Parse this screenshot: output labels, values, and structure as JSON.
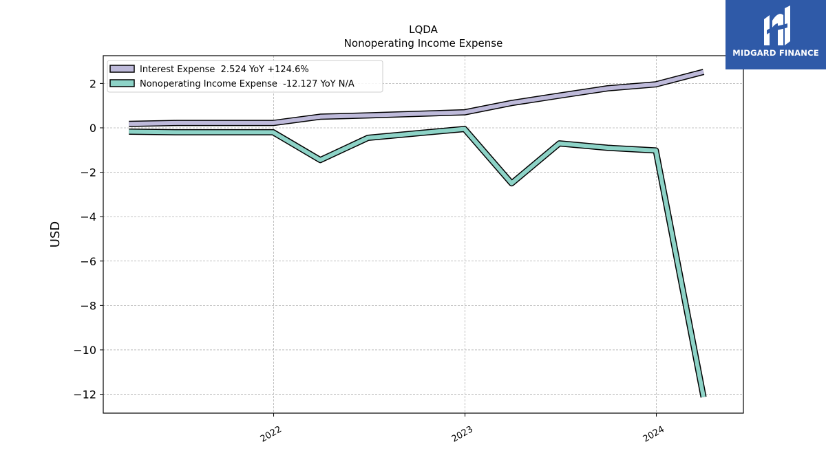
{
  "brand": {
    "name": "MIDGARD FINANCE",
    "background": "#2f5aa8"
  },
  "chart_data": {
    "type": "line",
    "title": "LQDA",
    "subtitle": "Nonoperating Income Expense",
    "ylabel": "USD",
    "xlabel": "",
    "xlim": [
      "2021-02-10",
      "2024-06-15"
    ],
    "ylim": [
      -12.85,
      3.25
    ],
    "x_ticks": [
      {
        "date": "2022-01-01",
        "label": "2022"
      },
      {
        "date": "2023-01-01",
        "label": "2023"
      },
      {
        "date": "2024-01-01",
        "label": "2024"
      }
    ],
    "y_ticks": [
      2,
      0,
      -2,
      -4,
      -6,
      -8,
      -10,
      -12
    ],
    "y_tick_labels": [
      "2",
      "0",
      "−2",
      "−4",
      "−6",
      "−8",
      "−10",
      "−12"
    ],
    "grid": true,
    "legend_position": "top-left",
    "x": [
      "2021-03-31",
      "2021-06-30",
      "2021-09-30",
      "2021-12-31",
      "2022-03-31",
      "2022-06-30",
      "2022-09-30",
      "2022-12-31",
      "2023-03-31",
      "2023-06-30",
      "2023-09-30",
      "2023-12-31",
      "2024-03-31"
    ],
    "series": [
      {
        "name": "Interest Expense",
        "legend_label": "Interest Expense  2.524 YoY +124.6%",
        "color": "#bebada",
        "values": [
          0.18,
          0.22,
          0.22,
          0.22,
          0.5,
          0.56,
          0.63,
          0.7,
          1.12,
          1.45,
          1.78,
          1.96,
          2.52
        ]
      },
      {
        "name": "Nonoperating Income Expense",
        "legend_label": "Nonoperating Income Expense  -12.127 YoY N/A",
        "color": "#8dd3c7",
        "values": [
          -0.17,
          -0.2,
          -0.2,
          -0.2,
          -1.45,
          -0.45,
          -0.25,
          -0.05,
          -2.5,
          -0.7,
          -0.9,
          -1.02,
          -12.13
        ]
      }
    ]
  }
}
